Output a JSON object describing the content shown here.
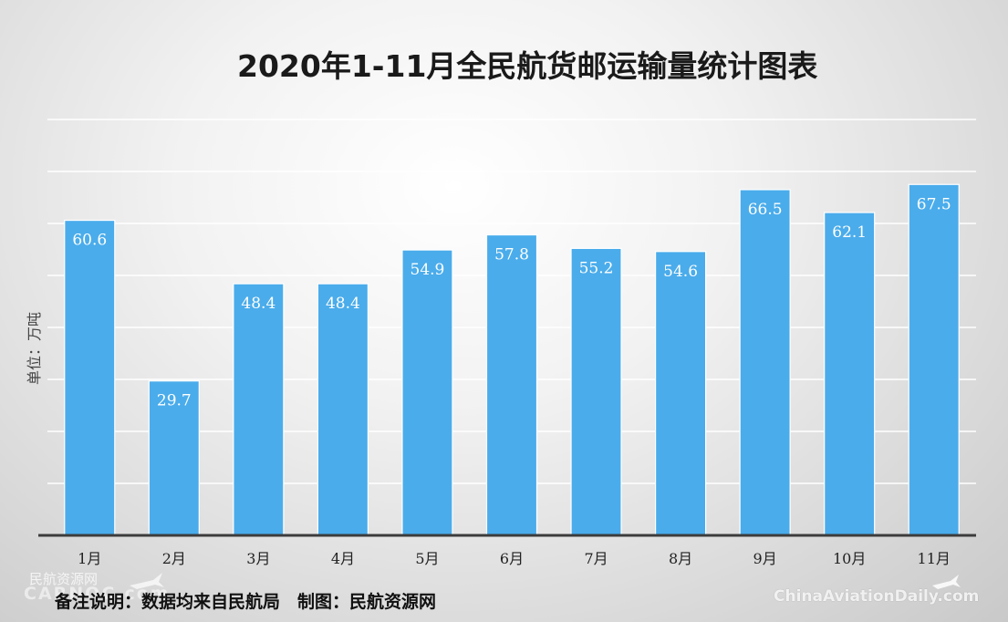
{
  "title": "2020年1-11月全民航货邮运输量统计图表",
  "unit_label": "单位：万吨",
  "footnote": "备注说明：数据均来自民航局　制图：民航资源网",
  "watermarks": {
    "left_cn": "民航资源网",
    "left_en": "CARNOC.com",
    "right": "ChinaAviationDaily.com",
    "icon": "plane-icon"
  },
  "colors": {
    "bar": "#4aaceb",
    "bar_edge": "#ffffff",
    "label": "#ffffff",
    "grid": "#ffffff",
    "axis": "#3c3c3c"
  },
  "chart_data": {
    "type": "bar",
    "title": "2020年1-11月全民航货邮运输量统计图表",
    "ylabel": "单位：万吨",
    "xlabel": "",
    "categories": [
      "1月",
      "2月",
      "3月",
      "4月",
      "5月",
      "6月",
      "7月",
      "8月",
      "9月",
      "10月",
      "11月"
    ],
    "values": [
      60.6,
      29.7,
      48.4,
      48.4,
      54.9,
      57.8,
      55.2,
      54.6,
      66.5,
      62.1,
      67.5
    ],
    "value_labels": [
      "60.6",
      "29.7",
      "48.4",
      "48.4",
      "54.9",
      "57.8",
      "55.2",
      "54.6",
      "66.5",
      "62.1",
      "67.5"
    ],
    "ylim": [
      0,
      80
    ],
    "ytick_step": 10,
    "grid": true,
    "show_y_tick_labels": false,
    "legend": "none"
  }
}
